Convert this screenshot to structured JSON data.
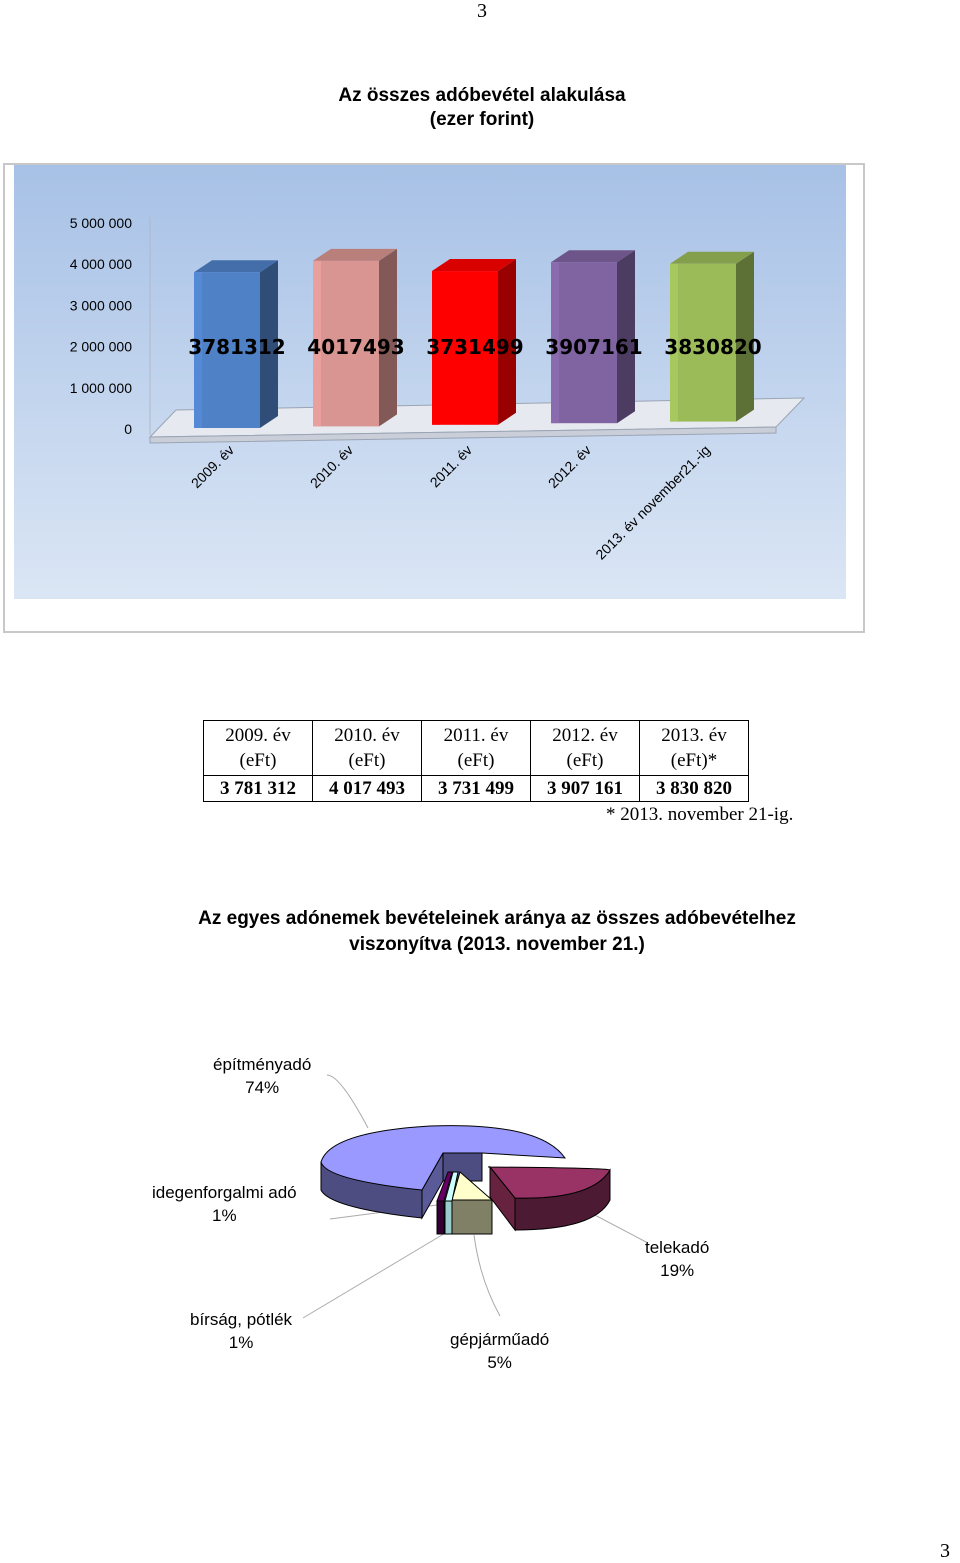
{
  "page_number_top": "3",
  "page_number_bottom": "3",
  "chart1_title": "Az összes adóbevétel alakulása",
  "chart1_subtitle": "(ezer forint)",
  "chart_data": [
    {
      "type": "bar",
      "categories": [
        "2009. év",
        "2010. év",
        "2011. év",
        "2012. év",
        "2013. év november21.-ig"
      ],
      "values": [
        3781312,
        4017493,
        3731499,
        3907161,
        3830820
      ],
      "data_labels": [
        "3781312",
        "4017493",
        "3731499",
        "3907161",
        "3830820"
      ],
      "ytick_labels": [
        "0",
        "1 000 000",
        "2 000 000",
        "3 000 000",
        "4 000 000",
        "5 000 000"
      ],
      "ylim": [
        0,
        5000000
      ],
      "colors": [
        "#4f81c7",
        "#d99591",
        "#ff0000",
        "#8064a2",
        "#9bbb59"
      ],
      "background": "#a9c3e6",
      "style": "3d-bar"
    },
    {
      "type": "pie",
      "categories": [
        "építményadó",
        "telekadó",
        "gépjárműadó",
        "bírság, pótlék",
        "idegenforgalmi adó"
      ],
      "values": [
        74,
        19,
        5,
        1,
        1
      ],
      "percent_labels": [
        "74%",
        "19%",
        "5%",
        "1%",
        "1%"
      ],
      "colors": [
        "#9999ff",
        "#993366",
        "#ffffcc",
        "#ccffff",
        "#660066"
      ],
      "style": "3d-exploded-pie"
    }
  ],
  "table": {
    "headers": [
      {
        "year": "2009. év",
        "unit": "(eFt)"
      },
      {
        "year": "2010. év",
        "unit": "(eFt)"
      },
      {
        "year": "2011. év",
        "unit": "(eFt)"
      },
      {
        "year": "2012. év",
        "unit": "(eFt)"
      },
      {
        "year": "2013. év",
        "unit": "(eFt)*"
      }
    ],
    "values": [
      "3 781 312",
      "4 017 493",
      "3 731 499",
      "3 907 161",
      "3 830 820"
    ]
  },
  "footnote": "* 2013. november 21-ig.",
  "chart2_title_line1": "Az egyes adónemek bevételeinek aránya az összes adóbevételhez",
  "chart2_title_line2": "viszonyítva (2013. november 21.)",
  "pie_labels": {
    "epitmenyado": {
      "name": "építményadó",
      "pct": "74%"
    },
    "idegenforgalmi": {
      "name": "idegenforgalmi adó",
      "pct": "1%"
    },
    "telekado": {
      "name": "telekadó",
      "pct": "19%"
    },
    "birsag": {
      "name": "bírság, pótlék",
      "pct": "1%"
    },
    "gepjarmuado": {
      "name": "gépjárműadó",
      "pct": "5%"
    }
  }
}
